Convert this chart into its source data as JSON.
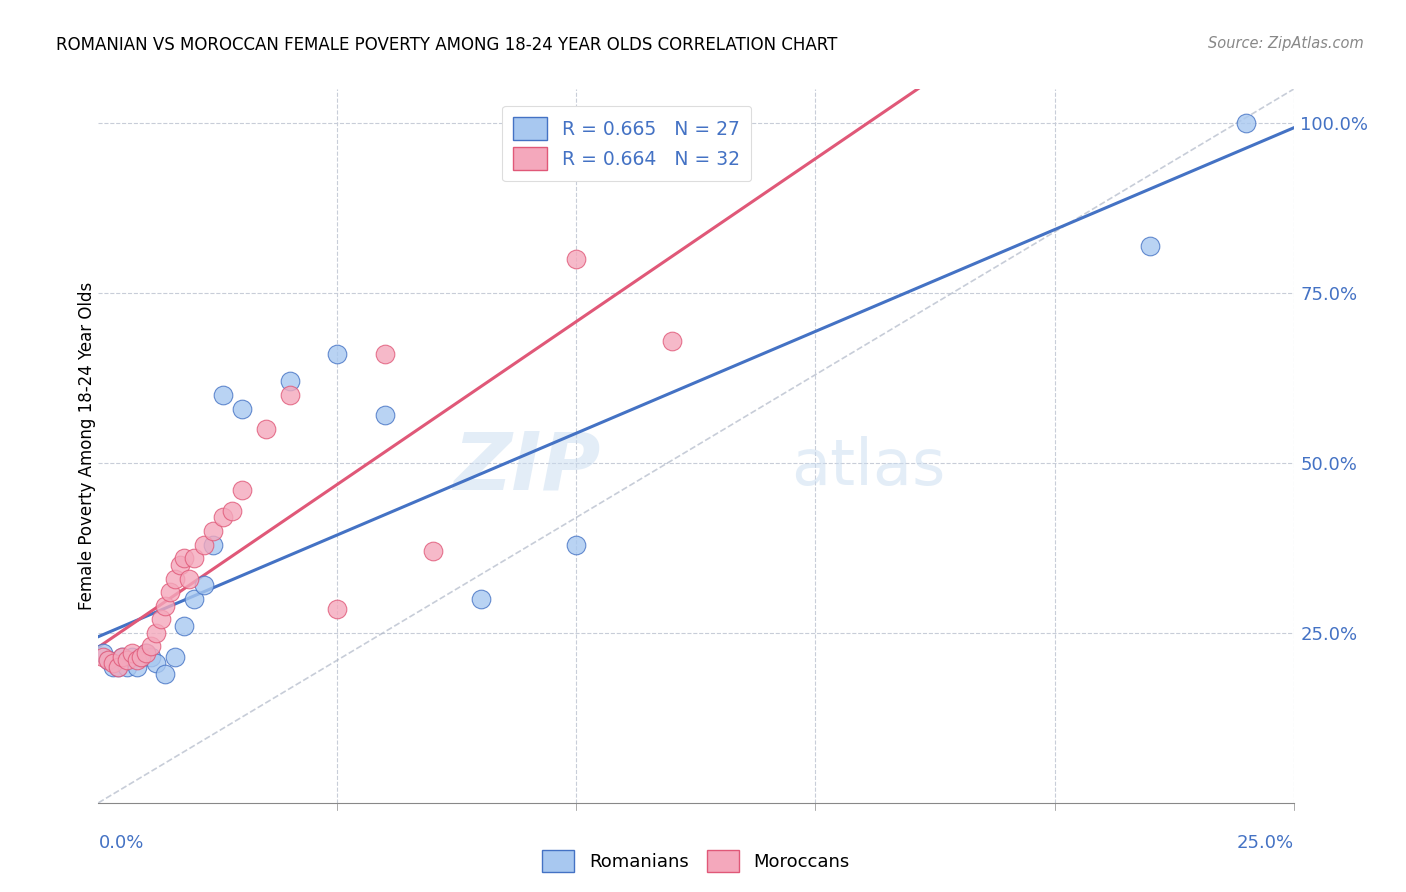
{
  "title": "ROMANIAN VS MOROCCAN FEMALE POVERTY AMONG 18-24 YEAR OLDS CORRELATION CHART",
  "source": "Source: ZipAtlas.com",
  "ylabel": "Female Poverty Among 18-24 Year Olds",
  "legend_romanian": "R = 0.665   N = 27",
  "legend_moroccan": "R = 0.664   N = 32",
  "legend_label_romanian": "Romanians",
  "legend_label_moroccan": "Moroccans",
  "color_romanian": "#A8C8F0",
  "color_moroccan": "#F4A8BC",
  "color_line_romanian": "#4472C4",
  "color_line_moroccan": "#E05878",
  "color_diag": "#B0B8C8",
  "watermark_zip": "ZIP",
  "watermark_atlas": "atlas",
  "bg_color": "#FFFFFF",
  "romanian_x": [
    0.001,
    0.002,
    0.003,
    0.004,
    0.005,
    0.006,
    0.007,
    0.008,
    0.009,
    0.01,
    0.011,
    0.012,
    0.014,
    0.016,
    0.018,
    0.02,
    0.022,
    0.024,
    0.026,
    0.03,
    0.04,
    0.05,
    0.06,
    0.08,
    0.1,
    0.22,
    0.24
  ],
  "romanian_y": [
    0.22,
    0.21,
    0.2,
    0.2,
    0.215,
    0.2,
    0.215,
    0.2,
    0.215,
    0.22,
    0.215,
    0.205,
    0.19,
    0.215,
    0.26,
    0.3,
    0.32,
    0.38,
    0.6,
    0.58,
    0.62,
    0.66,
    0.57,
    0.3,
    0.38,
    0.82,
    1.0
  ],
  "moroccan_x": [
    0.001,
    0.002,
    0.003,
    0.004,
    0.005,
    0.006,
    0.007,
    0.008,
    0.009,
    0.01,
    0.011,
    0.012,
    0.013,
    0.014,
    0.015,
    0.016,
    0.017,
    0.018,
    0.019,
    0.02,
    0.022,
    0.024,
    0.026,
    0.028,
    0.03,
    0.035,
    0.04,
    0.06,
    0.1,
    0.12,
    0.05,
    0.07
  ],
  "moroccan_y": [
    0.215,
    0.21,
    0.205,
    0.2,
    0.215,
    0.21,
    0.22,
    0.21,
    0.215,
    0.22,
    0.23,
    0.25,
    0.27,
    0.29,
    0.31,
    0.33,
    0.35,
    0.36,
    0.33,
    0.36,
    0.38,
    0.4,
    0.42,
    0.43,
    0.46,
    0.55,
    0.6,
    0.66,
    0.8,
    0.68,
    0.285,
    0.37
  ],
  "xlim": [
    0.0,
    0.25
  ],
  "ylim": [
    0.0,
    1.05
  ],
  "yticks": [
    0.25,
    0.5,
    0.75,
    1.0
  ],
  "ytick_labels": [
    "25.0%",
    "50.0%",
    "75.0%",
    "100.0%"
  ],
  "xtick_minor": [
    0.05,
    0.1,
    0.15,
    0.2,
    0.25
  ]
}
